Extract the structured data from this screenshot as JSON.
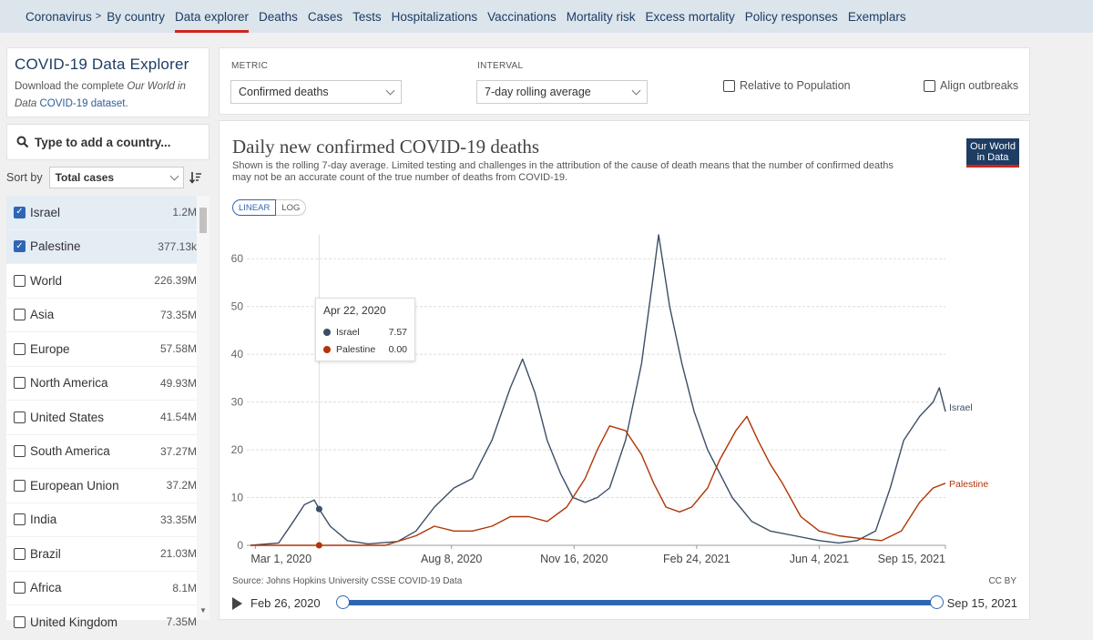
{
  "nav": {
    "crumb": "Coronavirus",
    "crumb_sep": ">",
    "items": [
      "By country",
      "Data explorer",
      "Deaths",
      "Cases",
      "Tests",
      "Hospitalizations",
      "Vaccinations",
      "Mortality risk",
      "Excess mortality",
      "Policy responses",
      "Exemplars"
    ],
    "active_index": 1
  },
  "explorer": {
    "title": "COVID-19 Data Explorer",
    "desc_1": "Download the complete",
    "desc_2": "Our World in",
    "desc_3": "Data",
    "desc_4": "COVID-19 dataset."
  },
  "search": {
    "placeholder": "Type to add a country..."
  },
  "sort": {
    "label": "Sort by",
    "value": "Total cases"
  },
  "countries": [
    {
      "name": "Israel",
      "value": "1.2M",
      "selected": true
    },
    {
      "name": "Palestine",
      "value": "377.13k",
      "selected": true
    },
    {
      "name": "World",
      "value": "226.39M",
      "selected": false
    },
    {
      "name": "Asia",
      "value": "73.35M",
      "selected": false
    },
    {
      "name": "Europe",
      "value": "57.58M",
      "selected": false
    },
    {
      "name": "North America",
      "value": "49.93M",
      "selected": false
    },
    {
      "name": "United States",
      "value": "41.54M",
      "selected": false
    },
    {
      "name": "South America",
      "value": "37.27M",
      "selected": false
    },
    {
      "name": "European Union",
      "value": "37.2M",
      "selected": false
    },
    {
      "name": "India",
      "value": "33.35M",
      "selected": false
    },
    {
      "name": "Brazil",
      "value": "21.03M",
      "selected": false
    },
    {
      "name": "Africa",
      "value": "8.1M",
      "selected": false
    },
    {
      "name": "United Kingdom",
      "value": "7.35M",
      "selected": false
    }
  ],
  "controls": {
    "metric_label": "METRIC",
    "metric_value": "Confirmed deaths",
    "interval_label": "INTERVAL",
    "interval_value": "7-day rolling average",
    "relative_label": "Relative to Population",
    "align_label": "Align outbreaks"
  },
  "chart_header": {
    "title": "Daily new confirmed COVID-19 deaths",
    "subtitle": "Shown is the rolling 7-day average. Limited testing and challenges in the attribution of the cause of death means that the number of confirmed deaths may not be an accurate count of the true number of deaths from COVID-19.",
    "logo_line1": "Our World",
    "logo_line2": "in Data",
    "scale_linear": "LINEAR",
    "scale_log": "LOG",
    "source": "Source: Johns Hopkins University CSSE COVID-19 Data",
    "license": "CC BY"
  },
  "tooltip": {
    "date": "Apr 22, 2020",
    "rows": [
      {
        "name": "Israel",
        "value": "7.57",
        "color": "#3c4e66"
      },
      {
        "name": "Palestine",
        "value": "0.00",
        "color": "#b13507"
      }
    ]
  },
  "timeline": {
    "start": "Feb 26, 2020",
    "end": "Sep 15, 2021"
  },
  "chart_data": {
    "type": "line",
    "title": "Daily new confirmed COVID-19 deaths",
    "ylim": [
      0,
      65
    ],
    "yticks": [
      0,
      10,
      20,
      30,
      40,
      50,
      60
    ],
    "xticks": [
      "Mar 1, 2020",
      "Aug 8, 2020",
      "Nov 16, 2020",
      "Feb 24, 2021",
      "Jun 4, 2021",
      "Sep 15, 2021"
    ],
    "x_start": "2020-02-26",
    "x_end": "2021-09-15",
    "series": [
      {
        "name": "Israel",
        "color": "#3c4e66",
        "points": [
          [
            "2020-02-26",
            0
          ],
          [
            "2020-03-20",
            0.5
          ],
          [
            "2020-04-01",
            5
          ],
          [
            "2020-04-10",
            8.5
          ],
          [
            "2020-04-18",
            9.5
          ],
          [
            "2020-04-22",
            7.6
          ],
          [
            "2020-05-01",
            4
          ],
          [
            "2020-05-15",
            1
          ],
          [
            "2020-06-01",
            0.3
          ],
          [
            "2020-06-25",
            0.8
          ],
          [
            "2020-07-10",
            3
          ],
          [
            "2020-07-25",
            8
          ],
          [
            "2020-08-10",
            12
          ],
          [
            "2020-08-25",
            14
          ],
          [
            "2020-09-10",
            22
          ],
          [
            "2020-09-25",
            33
          ],
          [
            "2020-10-05",
            39
          ],
          [
            "2020-10-15",
            32
          ],
          [
            "2020-10-25",
            22
          ],
          [
            "2020-11-05",
            15
          ],
          [
            "2020-11-15",
            10
          ],
          [
            "2020-11-25",
            9
          ],
          [
            "2020-12-05",
            10
          ],
          [
            "2020-12-15",
            12
          ],
          [
            "2020-12-28",
            22
          ],
          [
            "2021-01-10",
            38
          ],
          [
            "2021-01-20",
            57
          ],
          [
            "2021-01-24",
            65
          ],
          [
            "2021-02-02",
            50
          ],
          [
            "2021-02-12",
            38
          ],
          [
            "2021-02-22",
            28
          ],
          [
            "2021-03-05",
            20
          ],
          [
            "2021-03-15",
            15
          ],
          [
            "2021-03-25",
            10
          ],
          [
            "2021-04-10",
            5
          ],
          [
            "2021-04-25",
            3
          ],
          [
            "2021-05-15",
            2
          ],
          [
            "2021-06-04",
            1
          ],
          [
            "2021-06-20",
            0.5
          ],
          [
            "2021-07-05",
            1
          ],
          [
            "2021-07-20",
            3
          ],
          [
            "2021-08-01",
            12
          ],
          [
            "2021-08-12",
            22
          ],
          [
            "2021-08-25",
            27
          ],
          [
            "2021-09-05",
            30
          ],
          [
            "2021-09-10",
            33
          ],
          [
            "2021-09-15",
            28
          ]
        ]
      },
      {
        "name": "Palestine",
        "color": "#b13507",
        "points": [
          [
            "2020-02-26",
            0
          ],
          [
            "2020-04-22",
            0
          ],
          [
            "2020-06-15",
            0
          ],
          [
            "2020-07-10",
            2
          ],
          [
            "2020-07-25",
            4
          ],
          [
            "2020-08-10",
            3
          ],
          [
            "2020-08-25",
            3
          ],
          [
            "2020-09-10",
            4
          ],
          [
            "2020-09-25",
            6
          ],
          [
            "2020-10-10",
            6
          ],
          [
            "2020-10-25",
            5
          ],
          [
            "2020-11-10",
            8
          ],
          [
            "2020-11-25",
            14
          ],
          [
            "2020-12-05",
            20
          ],
          [
            "2020-12-15",
            25
          ],
          [
            "2020-12-28",
            24
          ],
          [
            "2021-01-10",
            19
          ],
          [
            "2021-01-20",
            13
          ],
          [
            "2021-01-30",
            8
          ],
          [
            "2021-02-10",
            7
          ],
          [
            "2021-02-20",
            8
          ],
          [
            "2021-03-05",
            12
          ],
          [
            "2021-03-15",
            18
          ],
          [
            "2021-03-28",
            24
          ],
          [
            "2021-04-06",
            27
          ],
          [
            "2021-04-15",
            22
          ],
          [
            "2021-04-25",
            17
          ],
          [
            "2021-05-05",
            13
          ],
          [
            "2021-05-20",
            6
          ],
          [
            "2021-06-04",
            3
          ],
          [
            "2021-06-20",
            2
          ],
          [
            "2021-07-05",
            1.5
          ],
          [
            "2021-07-25",
            1
          ],
          [
            "2021-08-10",
            3
          ],
          [
            "2021-08-25",
            9
          ],
          [
            "2021-09-05",
            12
          ],
          [
            "2021-09-15",
            13
          ]
        ]
      }
    ],
    "highlight_date": "2020-04-22"
  }
}
